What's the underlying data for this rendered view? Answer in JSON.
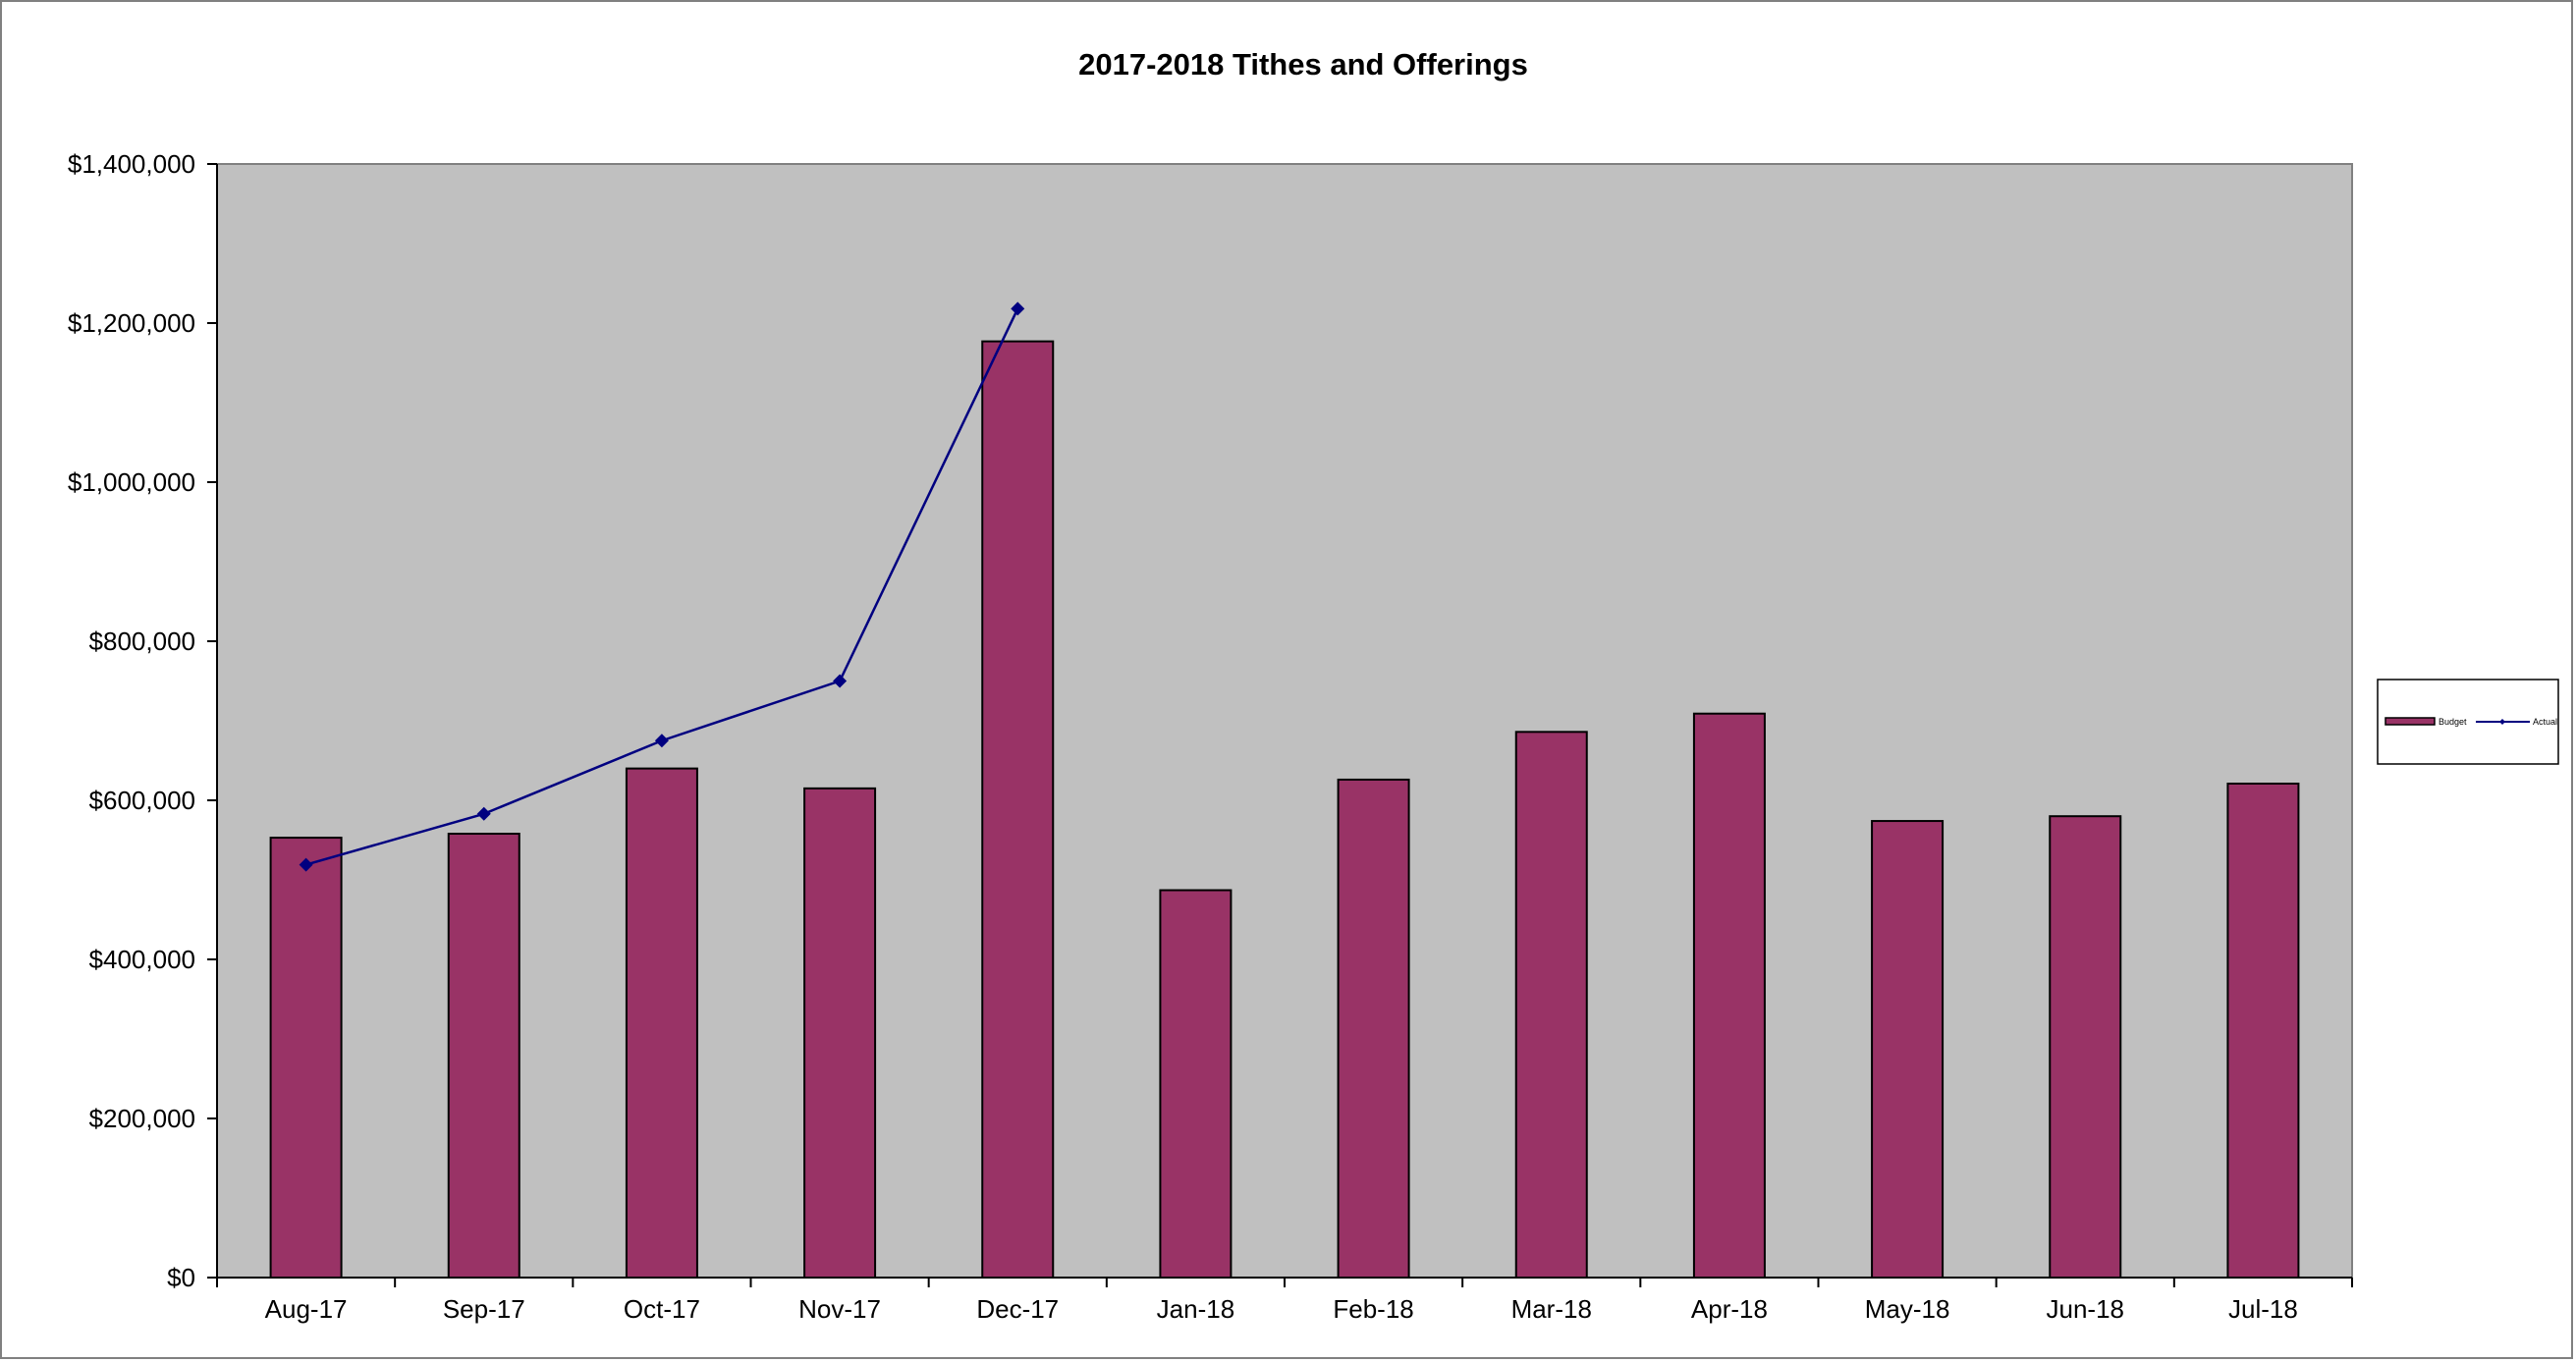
{
  "chart_data": {
    "type": "bar",
    "title": "2017-2018 Tithes and Offerings",
    "xlabel": "",
    "ylabel": "",
    "categories": [
      "Aug-17",
      "Sep-17",
      "Oct-17",
      "Nov-17",
      "Dec-17",
      "Jan-18",
      "Feb-18",
      "Mar-18",
      "Apr-18",
      "May-18",
      "Jun-18",
      "Jul-18"
    ],
    "ylim": [
      0,
      1400000
    ],
    "yticks": [
      0,
      200000,
      400000,
      600000,
      800000,
      1000000,
      1200000,
      1400000
    ],
    "ytick_labels": [
      "$0",
      "$200,000",
      "$400,000",
      "$600,000",
      "$800,000",
      "$1,000,000",
      "$1,200,000",
      "$1,400,000"
    ],
    "grid": false,
    "legend_position": "right",
    "plot_background": "#C0C0C0",
    "series": [
      {
        "name": "Budget",
        "type": "bar",
        "color": "#993366",
        "values": [
          553000,
          558000,
          640000,
          615000,
          1177000,
          487000,
          626000,
          686000,
          709000,
          574000,
          580000,
          621000
        ]
      },
      {
        "name": "Actual",
        "type": "line",
        "color": "#000080",
        "marker": "diamond",
        "values": [
          519000,
          583000,
          675000,
          750000,
          1218000,
          null,
          null,
          null,
          null,
          null,
          null,
          null
        ]
      }
    ]
  }
}
